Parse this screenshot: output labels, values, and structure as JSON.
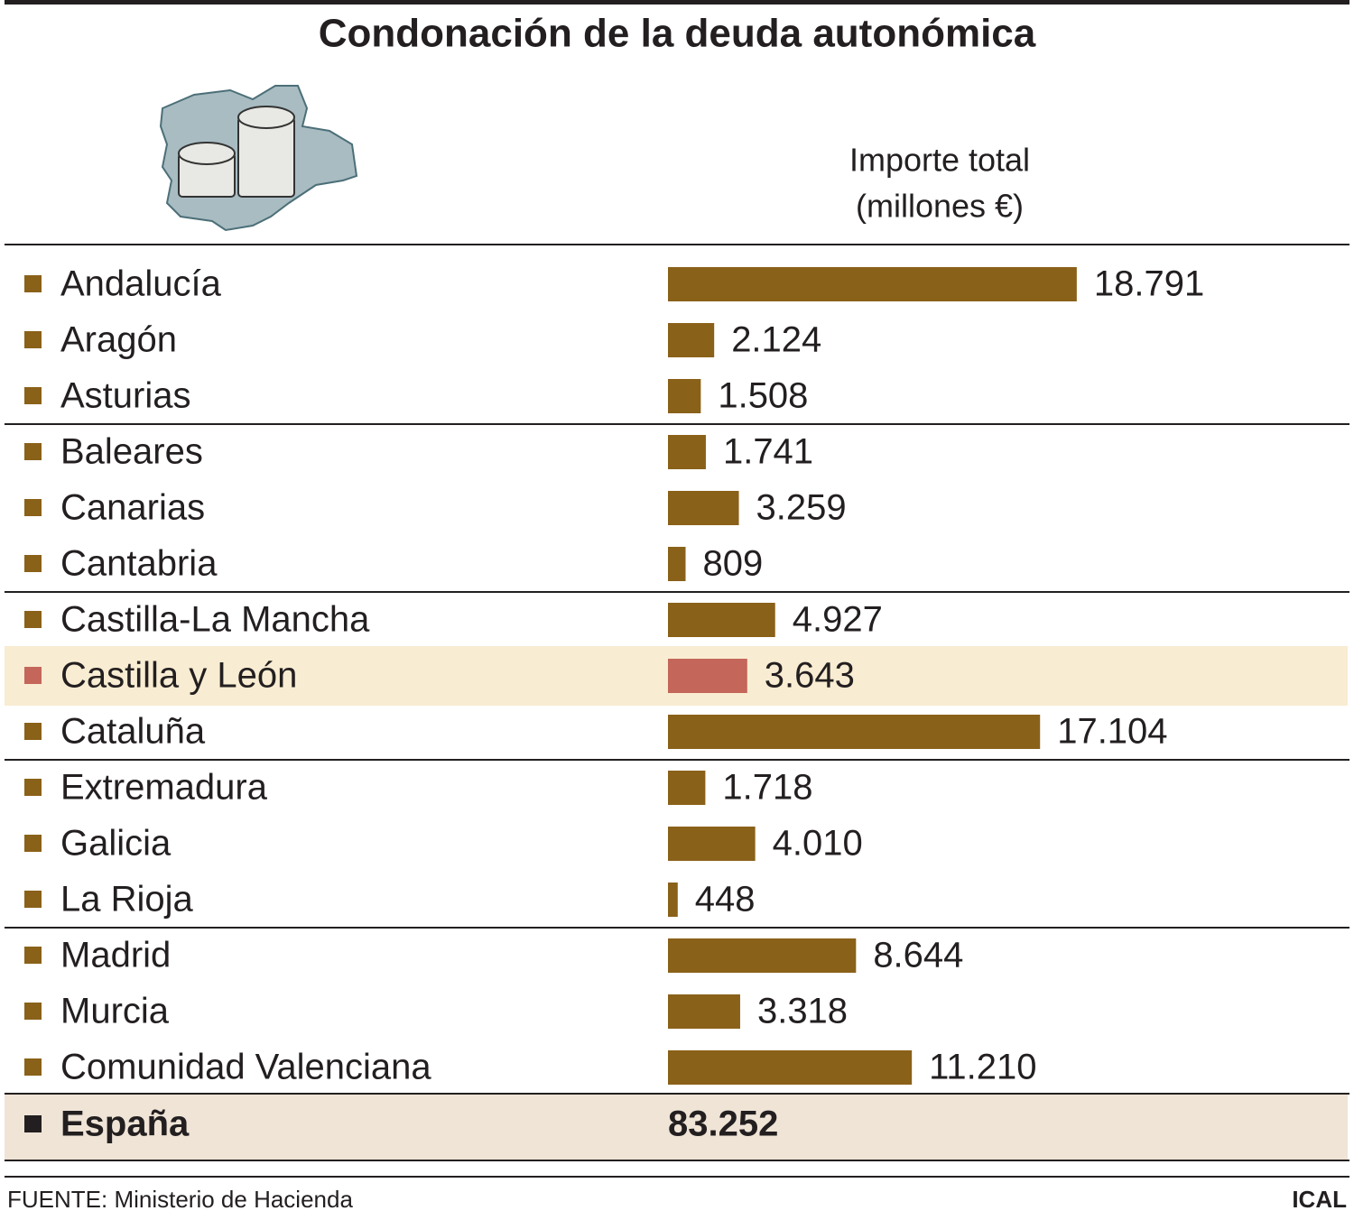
{
  "chart_data": {
    "type": "bar",
    "orientation": "horizontal",
    "title": "Condonación de la deuda autonómica",
    "value_axis_title": [
      "Importe total",
      "(millones €)"
    ],
    "categories": [
      "Andalucía",
      "Aragón",
      "Asturias",
      "Baleares",
      "Canarias",
      "Cantabria",
      "Castilla-La Mancha",
      "Castilla y León",
      "Cataluña",
      "Extremadura",
      "Galicia",
      "La Rioja",
      "Madrid",
      "Murcia",
      "Comunidad Valenciana"
    ],
    "values": [
      18791,
      2124,
      1508,
      1741,
      3259,
      809,
      4927,
      3643,
      17104,
      1718,
      4010,
      448,
      8644,
      3318,
      11210
    ],
    "value_labels": [
      "18.791",
      "2.124",
      "1.508",
      "1.741",
      "3.259",
      "809",
      "4.927",
      "3.643",
      "17.104",
      "1.718",
      "4.010",
      "448",
      "8.644",
      "3.318",
      "11.210"
    ],
    "color": "#8a6119",
    "highlight": {
      "category": "Castilla y León",
      "color": "#c4665a",
      "background": "#f8ecd2"
    },
    "xlim": [
      0,
      20000
    ],
    "total": {
      "name": "España",
      "value": 83252,
      "label": "83.252",
      "background": "#efe4d6",
      "color": "#231f20"
    },
    "source": "FUENTE: Ministerio de Hacienda",
    "credit": "ICAL"
  }
}
